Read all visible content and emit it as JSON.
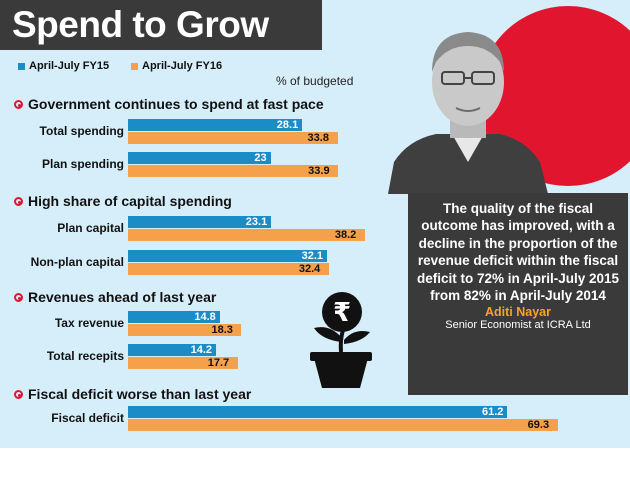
{
  "header": {
    "title": "Spend to Grow"
  },
  "legend": {
    "fy15": "April-July FY15",
    "fy16": "April-July FY16"
  },
  "note": "% of budgeted",
  "colors": {
    "fy15": "#1b8cc6",
    "fy16": "#f5a04a",
    "accent": "#e2152f",
    "panel": "#d6eef9",
    "dark": "#3a3a3a"
  },
  "sections": [
    "Government continues to spend at fast pace",
    "High share of capital spending",
    "Revenues ahead of last year",
    "Fiscal deficit worse than last year"
  ],
  "quote": {
    "text": "The quality of the fiscal outcome has improved, with a decline in the proportion of the revenue deficit within the fiscal deficit to 72% in April-July 2015 from 82% in April-July 2014",
    "name": "Aditi Nayar",
    "role": "Senior Economist at  ICRA Ltd"
  },
  "icons": {
    "rupee_plant": "rupee-plant-icon",
    "bullet": "red-ring-bullet-icon"
  },
  "chart_data": {
    "type": "bar",
    "orientation": "horizontal",
    "categories": [
      "Total spending",
      "Plan spending",
      "Plan capital",
      "Non-plan capital",
      "Tax revenue",
      "Total recepits",
      "Fiscal deficit"
    ],
    "series": [
      {
        "name": "April-July FY15",
        "values": [
          28.1,
          23,
          23.1,
          32.1,
          14.8,
          14.2,
          61.2
        ]
      },
      {
        "name": "April-July FY16",
        "values": [
          33.8,
          33.9,
          38.2,
          32.4,
          18.3,
          17.7,
          69.3
        ]
      }
    ],
    "data_labels": {
      "fy15": [
        "28.1",
        "23",
        "23.1",
        "32.1",
        "14.8",
        "14.2",
        "61.2"
      ],
      "fy16": [
        "33.8",
        "33.9",
        "38.2",
        "32.4",
        "18.3",
        "17.7",
        "69.3"
      ]
    },
    "unit": "% of budgeted",
    "title": "Spend to Grow",
    "grid": false,
    "legend_position": "top-left"
  }
}
